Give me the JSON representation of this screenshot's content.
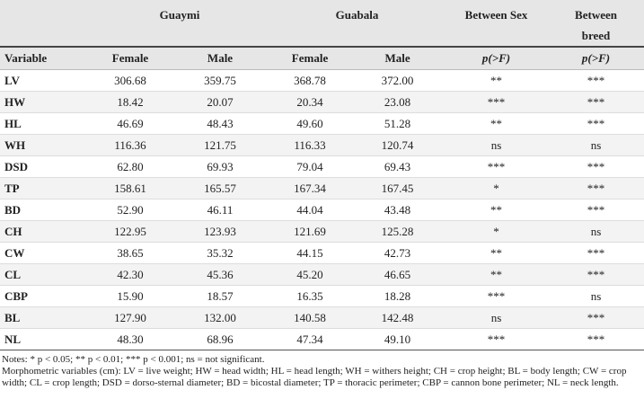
{
  "header": {
    "groups": [
      "Guaymi",
      "Guabala",
      "Between Sex",
      "Between breed"
    ],
    "columns": [
      "Variable",
      "Female",
      "Male",
      "Female",
      "Male",
      "p(>F)",
      "p(>F)"
    ]
  },
  "table": {
    "rows": [
      [
        "LV",
        "306.68",
        "359.75",
        "368.78",
        "372.00",
        "**",
        "***"
      ],
      [
        "HW",
        "18.42",
        "20.07",
        "20.34",
        "23.08",
        "***",
        "***"
      ],
      [
        "HL",
        "46.69",
        "48.43",
        "49.60",
        "51.28",
        "**",
        "***"
      ],
      [
        "WH",
        "116.36",
        "121.75",
        "116.33",
        "120.74",
        "ns",
        "ns"
      ],
      [
        "DSD",
        "62.80",
        "69.93",
        "79.04",
        "69.43",
        "***",
        "***"
      ],
      [
        "TP",
        "158.61",
        "165.57",
        "167.34",
        "167.45",
        "*",
        "***"
      ],
      [
        "BD",
        "52.90",
        "46.11",
        "44.04",
        "43.48",
        "**",
        "***"
      ],
      [
        "CH",
        "122.95",
        "123.93",
        "121.69",
        "125.28",
        "*",
        "ns"
      ],
      [
        "CW",
        "38.65",
        "35.32",
        "44.15",
        "42.73",
        "**",
        "***"
      ],
      [
        "CL",
        "42.30",
        "45.36",
        "45.20",
        "46.65",
        "**",
        "***"
      ],
      [
        "CBP",
        "15.90",
        "18.57",
        "16.35",
        "18.28",
        "***",
        "ns"
      ],
      [
        "BL",
        "127.90",
        "132.00",
        "140.58",
        "142.48",
        "ns",
        "***"
      ],
      [
        "NL",
        "48.30",
        "68.96",
        "47.34",
        "49.10",
        "***",
        "***"
      ]
    ]
  },
  "notes": [
    "Notes: * p < 0.05; ** p < 0.01; *** p < 0.001; ns = not significant.",
    "Morphometric variables (cm): LV = live weight; HW = head width; HL = head length; WH = withers height; CH = crop height; BL = body length; CW = crop width; CL = crop length; DSD = dorso-sternal diameter; BD = bicostal diameter; TP = thoracic perimeter; CBP = cannon bone perimeter; NL = neck length."
  ]
}
